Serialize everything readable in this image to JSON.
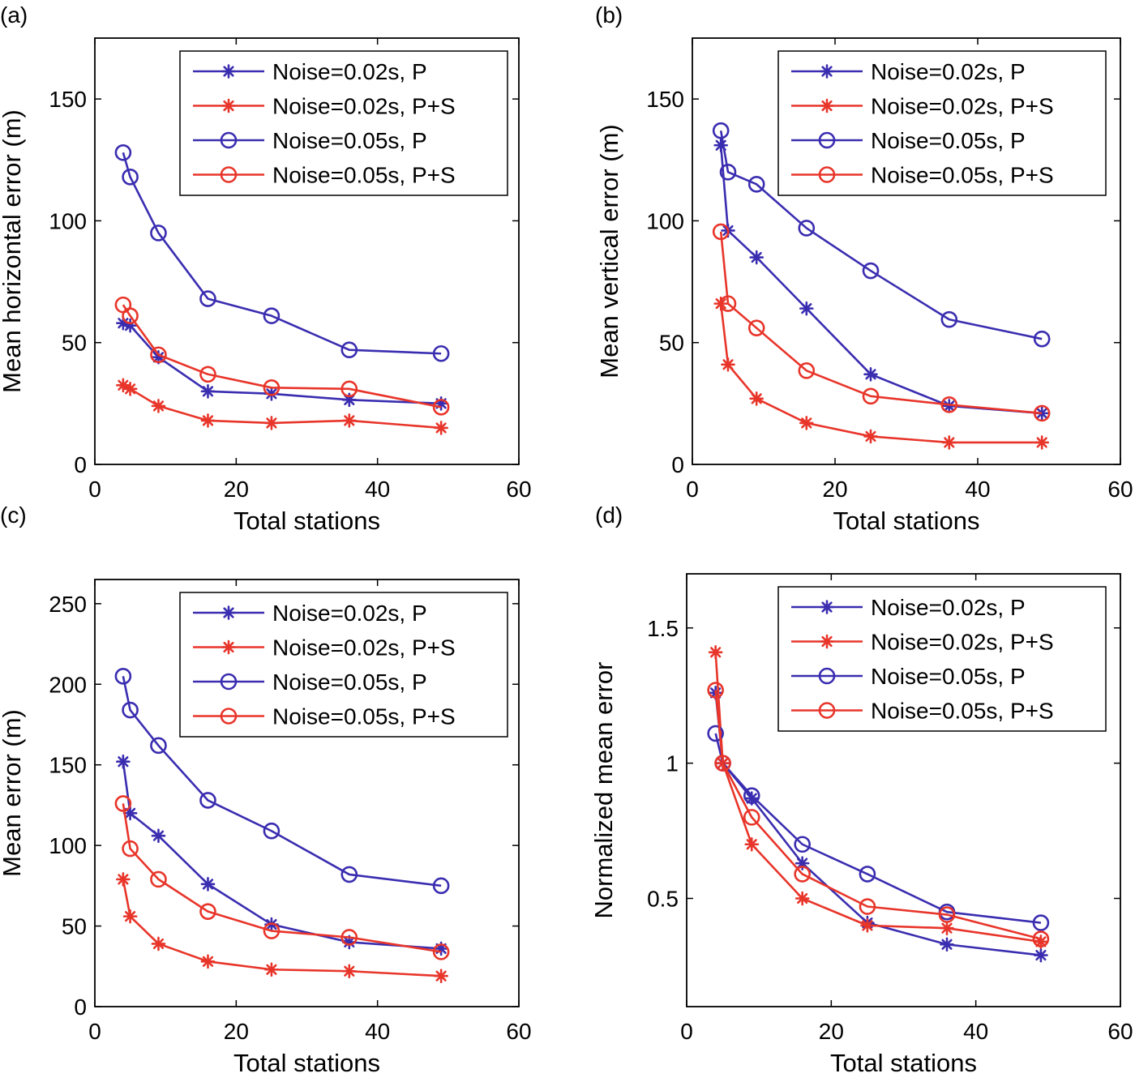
{
  "colors": {
    "P": "#3a2db0",
    "PS": "#e8352a",
    "axis": "#000000"
  },
  "chart_data": [
    {
      "panel_label": "(a)",
      "type": "line",
      "xlabel": "Total stations",
      "ylabel": "Mean horizontal error (m)",
      "xlim": [
        0,
        60
      ],
      "ylim": [
        0,
        175
      ],
      "xticks": [
        0,
        20,
        40,
        60
      ],
      "yticks": [
        0,
        50,
        100,
        150
      ],
      "legend_position": "top-right",
      "series": [
        {
          "name": "Noise=0.02s, P",
          "color": "#3a2db0",
          "marker": "star",
          "x": [
            4,
            5,
            9,
            16,
            25,
            36,
            49
          ],
          "y": [
            58,
            57,
            44,
            30,
            29,
            26.5,
            25
          ]
        },
        {
          "name": "Noise=0.02s, P+S",
          "color": "#e8352a",
          "marker": "star",
          "x": [
            4,
            5,
            9,
            16,
            25,
            36,
            49
          ],
          "y": [
            32.5,
            31,
            24,
            18,
            17,
            18,
            15
          ]
        },
        {
          "name": "Noise=0.05s, P",
          "color": "#3a2db0",
          "marker": "circle",
          "x": [
            4,
            5,
            9,
            16,
            25,
            36,
            49
          ],
          "y": [
            128,
            118,
            95,
            68,
            61,
            47,
            45.5
          ]
        },
        {
          "name": "Noise=0.05s, P+S",
          "color": "#e8352a",
          "marker": "circle",
          "x": [
            4,
            5,
            9,
            16,
            25,
            36,
            49
          ],
          "y": [
            65.5,
            61,
            45,
            37,
            31.5,
            31,
            23.5
          ]
        }
      ]
    },
    {
      "panel_label": "(b)",
      "type": "line",
      "xlabel": "Total stations",
      "ylabel": "Mean vertical error (m)",
      "xlim": [
        0,
        60
      ],
      "ylim": [
        0,
        175
      ],
      "xticks": [
        0,
        20,
        40,
        60
      ],
      "yticks": [
        0,
        50,
        100,
        150
      ],
      "legend_position": "top-right",
      "series": [
        {
          "name": "Noise=0.02s, P",
          "color": "#3a2db0",
          "marker": "star",
          "x": [
            4,
            5,
            9,
            16,
            25,
            36,
            49
          ],
          "y": [
            131,
            96,
            85,
            64,
            37,
            24,
            21
          ]
        },
        {
          "name": "Noise=0.02s, P+S",
          "color": "#e8352a",
          "marker": "star",
          "x": [
            4,
            5,
            9,
            16,
            25,
            36,
            49
          ],
          "y": [
            66,
            41,
            27,
            17,
            11.5,
            9,
            9
          ]
        },
        {
          "name": "Noise=0.05s, P",
          "color": "#3a2db0",
          "marker": "circle",
          "x": [
            4,
            5,
            9,
            16,
            25,
            36,
            49
          ],
          "y": [
            137,
            120,
            115,
            97,
            79.5,
            59.5,
            51.5
          ]
        },
        {
          "name": "Noise=0.05s, P+S",
          "color": "#e8352a",
          "marker": "circle",
          "x": [
            4,
            5,
            9,
            16,
            25,
            36,
            49
          ],
          "y": [
            95.5,
            66,
            56,
            38.5,
            28,
            24.5,
            21
          ]
        }
      ]
    },
    {
      "panel_label": "(c)",
      "type": "line",
      "xlabel": "Total stations",
      "ylabel": "Mean error (m)",
      "xlim": [
        0,
        60
      ],
      "ylim": [
        0,
        265
      ],
      "xticks": [
        0,
        20,
        40,
        60
      ],
      "yticks": [
        0,
        50,
        100,
        150,
        200,
        250
      ],
      "legend_position": "top-right",
      "series": [
        {
          "name": "Noise=0.02s, P",
          "color": "#3a2db0",
          "marker": "star",
          "x": [
            4,
            5,
            9,
            16,
            25,
            36,
            49
          ],
          "y": [
            152,
            120,
            106,
            76,
            51,
            40,
            36
          ]
        },
        {
          "name": "Noise=0.02s, P+S",
          "color": "#e8352a",
          "marker": "star",
          "x": [
            4,
            5,
            9,
            16,
            25,
            36,
            49
          ],
          "y": [
            79,
            56,
            39,
            28,
            23,
            22,
            19
          ]
        },
        {
          "name": "Noise=0.05s, P",
          "color": "#3a2db0",
          "marker": "circle",
          "x": [
            4,
            5,
            9,
            16,
            25,
            36,
            49
          ],
          "y": [
            205,
            184,
            162,
            128,
            109,
            82,
            75
          ]
        },
        {
          "name": "Noise=0.05s, P+S",
          "color": "#e8352a",
          "marker": "circle",
          "x": [
            4,
            5,
            9,
            16,
            25,
            36,
            49
          ],
          "y": [
            126,
            98,
            79,
            59,
            47,
            43,
            34
          ]
        }
      ]
    },
    {
      "panel_label": "(d)",
      "type": "line",
      "xlabel": "Total stations",
      "ylabel": "Normalized mean error",
      "xlim": [
        0,
        60
      ],
      "ylim": [
        0.1,
        1.7
      ],
      "xticks": [
        0,
        20,
        40,
        60
      ],
      "yticks": [
        0.5,
        1,
        1.5
      ],
      "ytick_labels": [
        "0.5",
        "1",
        "1.5"
      ],
      "legend_position": "top-right",
      "series": [
        {
          "name": "Noise=0.02s, P",
          "color": "#3a2db0",
          "marker": "star",
          "x": [
            4,
            5,
            9,
            16,
            25,
            36,
            49
          ],
          "y": [
            1.26,
            1.0,
            0.87,
            0.63,
            0.41,
            0.33,
            0.29
          ]
        },
        {
          "name": "Noise=0.02s, P+S",
          "color": "#e8352a",
          "marker": "star",
          "x": [
            4,
            5,
            9,
            16,
            25,
            36,
            49
          ],
          "y": [
            1.41,
            1.0,
            0.7,
            0.5,
            0.4,
            0.39,
            0.34
          ]
        },
        {
          "name": "Noise=0.05s, P",
          "color": "#3a2db0",
          "marker": "circle",
          "x": [
            4,
            5,
            9,
            16,
            25,
            36,
            49
          ],
          "y": [
            1.11,
            1.0,
            0.88,
            0.7,
            0.59,
            0.45,
            0.41
          ]
        },
        {
          "name": "Noise=0.05s, P+S",
          "color": "#e8352a",
          "marker": "circle",
          "x": [
            4,
            5,
            9,
            16,
            25,
            36,
            49
          ],
          "y": [
            1.27,
            1.0,
            0.8,
            0.59,
            0.47,
            0.44,
            0.35
          ]
        }
      ]
    }
  ]
}
